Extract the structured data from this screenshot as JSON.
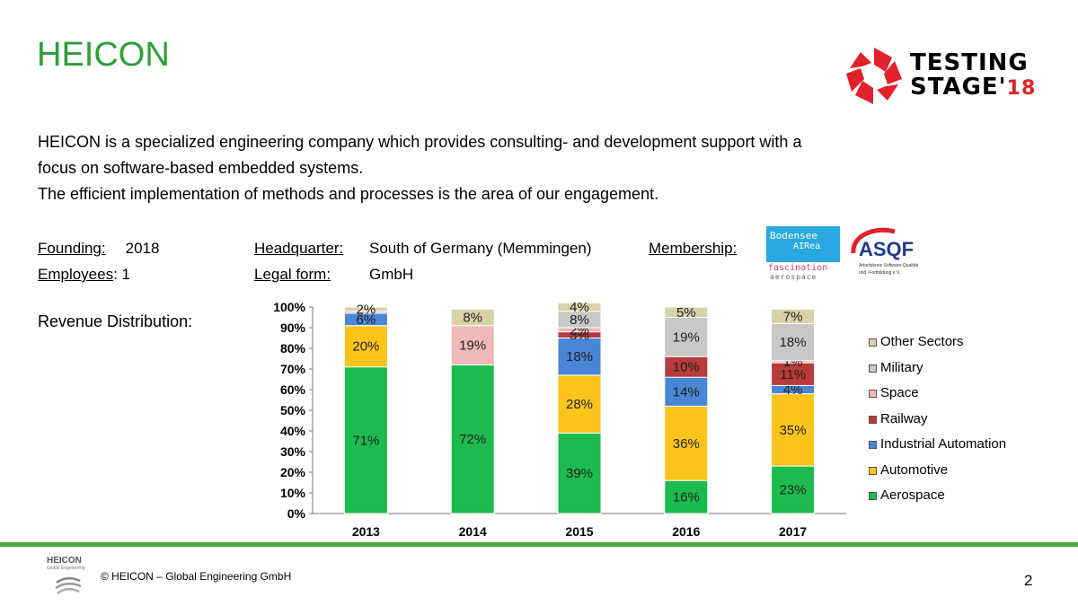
{
  "title": "HEICON",
  "intro": {
    "line1": "HEICON is a specialized engineering company which provides consulting- and development support with a",
    "line2": "focus on software-based embedded systems.",
    "line3": "The efficient implementation of methods and processes is the area of our engagement."
  },
  "facts": {
    "founding_label": "Founding:",
    "founding_value": "2018",
    "employees_label": "Employees",
    "employees_value": ": 1",
    "hq_label": "Headquarter:",
    "hq_value": "South of Germany (Memmingen)",
    "legal_label": "Legal form:",
    "legal_value": "GmbH",
    "membership_label": "Membership:"
  },
  "revenue_label": "Revenue Distribution:",
  "logos": {
    "testing_line1": "TESTING",
    "testing_line2": "STAGE'",
    "testing_year": "18",
    "bodensee_line1": "Bodensee",
    "bodensee_line2": "AIRea",
    "bodensee_line3": "fascination",
    "bodensee_line4": "aerospace",
    "asqf_name": "ASQF",
    "asqf_sub1": "Arbeitskreis Software-Qualität",
    "asqf_sub2": "und -Fortbildung e.V.",
    "heicon_name": "HEICON",
    "heicon_sub": "Global Engineering"
  },
  "footer": {
    "copyright": "© HEICON – Global Engineering GmbH",
    "page": "2"
  },
  "colors": {
    "title_green": "#2e9e3a",
    "bar_green": "#4bac3f",
    "logo_red": "#e0202a"
  },
  "chart_data": {
    "type": "bar",
    "stacked": true,
    "categories": [
      "2013",
      "2014",
      "2015",
      "2016",
      "2017"
    ],
    "ylim": [
      0,
      100
    ],
    "yticks": [
      "0%",
      "10%",
      "20%",
      "30%",
      "40%",
      "50%",
      "60%",
      "70%",
      "80%",
      "90%",
      "100%"
    ],
    "legend_position": "right",
    "grid": false,
    "series": [
      {
        "name": "Aerospace",
        "color": "#1dbb4e",
        "values": [
          71,
          72,
          39,
          16,
          23
        ],
        "labels": [
          "71%",
          "72%",
          "39%",
          "16%",
          "23%"
        ]
      },
      {
        "name": "Automotive",
        "color": "#fcc419",
        "values": [
          20,
          0,
          28,
          36,
          35
        ],
        "labels": [
          "20%",
          "",
          "28%",
          "36%",
          "35%"
        ]
      },
      {
        "name": "Industrial Automation",
        "color": "#4a86d6",
        "values": [
          6,
          0,
          18,
          14,
          4
        ],
        "labels": [
          "6%",
          "",
          "18%",
          "14%",
          "4%"
        ]
      },
      {
        "name": "Railway",
        "color": "#b83a3a",
        "values": [
          0,
          0,
          3,
          10,
          11
        ],
        "labels": [
          "",
          "",
          "3%",
          "10%",
          "11%"
        ]
      },
      {
        "name": "Space",
        "color": "#f0b8b8",
        "values": [
          1,
          19,
          2,
          0,
          1
        ],
        "labels": [
          "",
          "19%",
          "2%",
          "",
          "1%"
        ]
      },
      {
        "name": "Military",
        "color": "#c8c8c8",
        "values": [
          0,
          0,
          8,
          19,
          18
        ],
        "labels": [
          "",
          "",
          "8%",
          "19%",
          "18%"
        ]
      },
      {
        "name": "Other Sectors",
        "color": "#d8d2a8",
        "values": [
          2,
          8,
          4,
          5,
          7
        ],
        "labels": [
          "2%",
          "8%",
          "4%",
          "5%",
          "7%"
        ]
      }
    ]
  }
}
